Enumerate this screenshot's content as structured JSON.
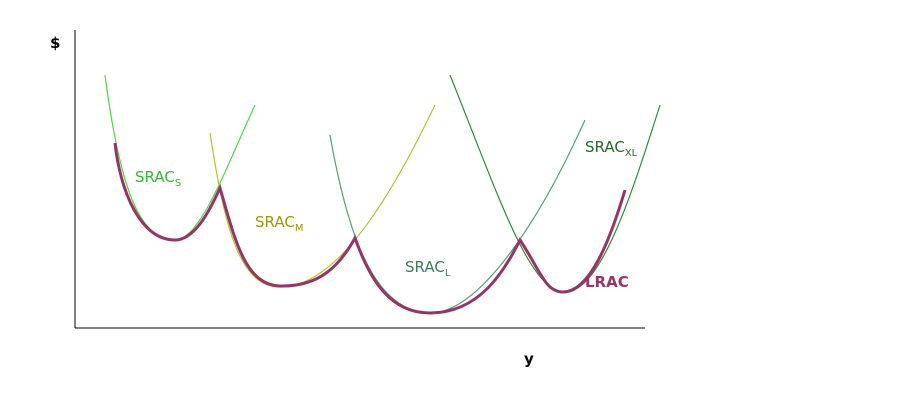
{
  "axes": {
    "y_label": "$",
    "x_label": "y"
  },
  "curves": [
    {
      "label": "SRAC",
      "subscript": "S"
    },
    {
      "label": "SRAC",
      "subscript": "M"
    },
    {
      "label": "SRAC",
      "subscript": "L"
    },
    {
      "label": "SRAC",
      "subscript": "XL"
    }
  ],
  "lrac": {
    "label": "LRAC"
  }
}
